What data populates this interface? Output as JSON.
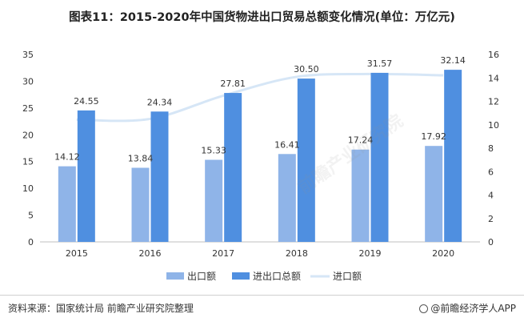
{
  "title": "图表11：2015-2020年中国货物进出口贸易总额变化情况(单位：万亿元)",
  "source": "资料来源：国家统计局 前瞻产业研究院整理",
  "brand": "@前瞻经济学人APP",
  "watermark": "前瞻产业研究院",
  "colors": {
    "export": "#8fb4e8",
    "total": "#4f8fe0",
    "import": "#d6e6f6",
    "axis": "#bfbfbf"
  },
  "chart_data": {
    "type": "bar",
    "categories": [
      "2015",
      "2016",
      "2017",
      "2018",
      "2019",
      "2020"
    ],
    "series": [
      {
        "name": "出口额",
        "type": "bar",
        "axis": "left",
        "values": [
          14.12,
          13.84,
          15.33,
          16.41,
          17.24,
          17.92
        ]
      },
      {
        "name": "进出口总额",
        "type": "bar",
        "axis": "left",
        "values": [
          24.55,
          24.34,
          27.81,
          30.5,
          31.57,
          32.14
        ]
      },
      {
        "name": "进口额",
        "type": "line",
        "axis": "right",
        "values": [
          10.43,
          10.5,
          12.48,
          14.09,
          14.33,
          14.22
        ]
      }
    ],
    "y_left": {
      "min": 0,
      "max": 35,
      "ticks": [
        0,
        5,
        10,
        15,
        20,
        25,
        30,
        35
      ]
    },
    "y_right": {
      "min": 0,
      "max": 16,
      "ticks": [
        0,
        2,
        4,
        6,
        8,
        10,
        12,
        14,
        16
      ]
    },
    "legend_position": "bottom",
    "grid": false
  }
}
